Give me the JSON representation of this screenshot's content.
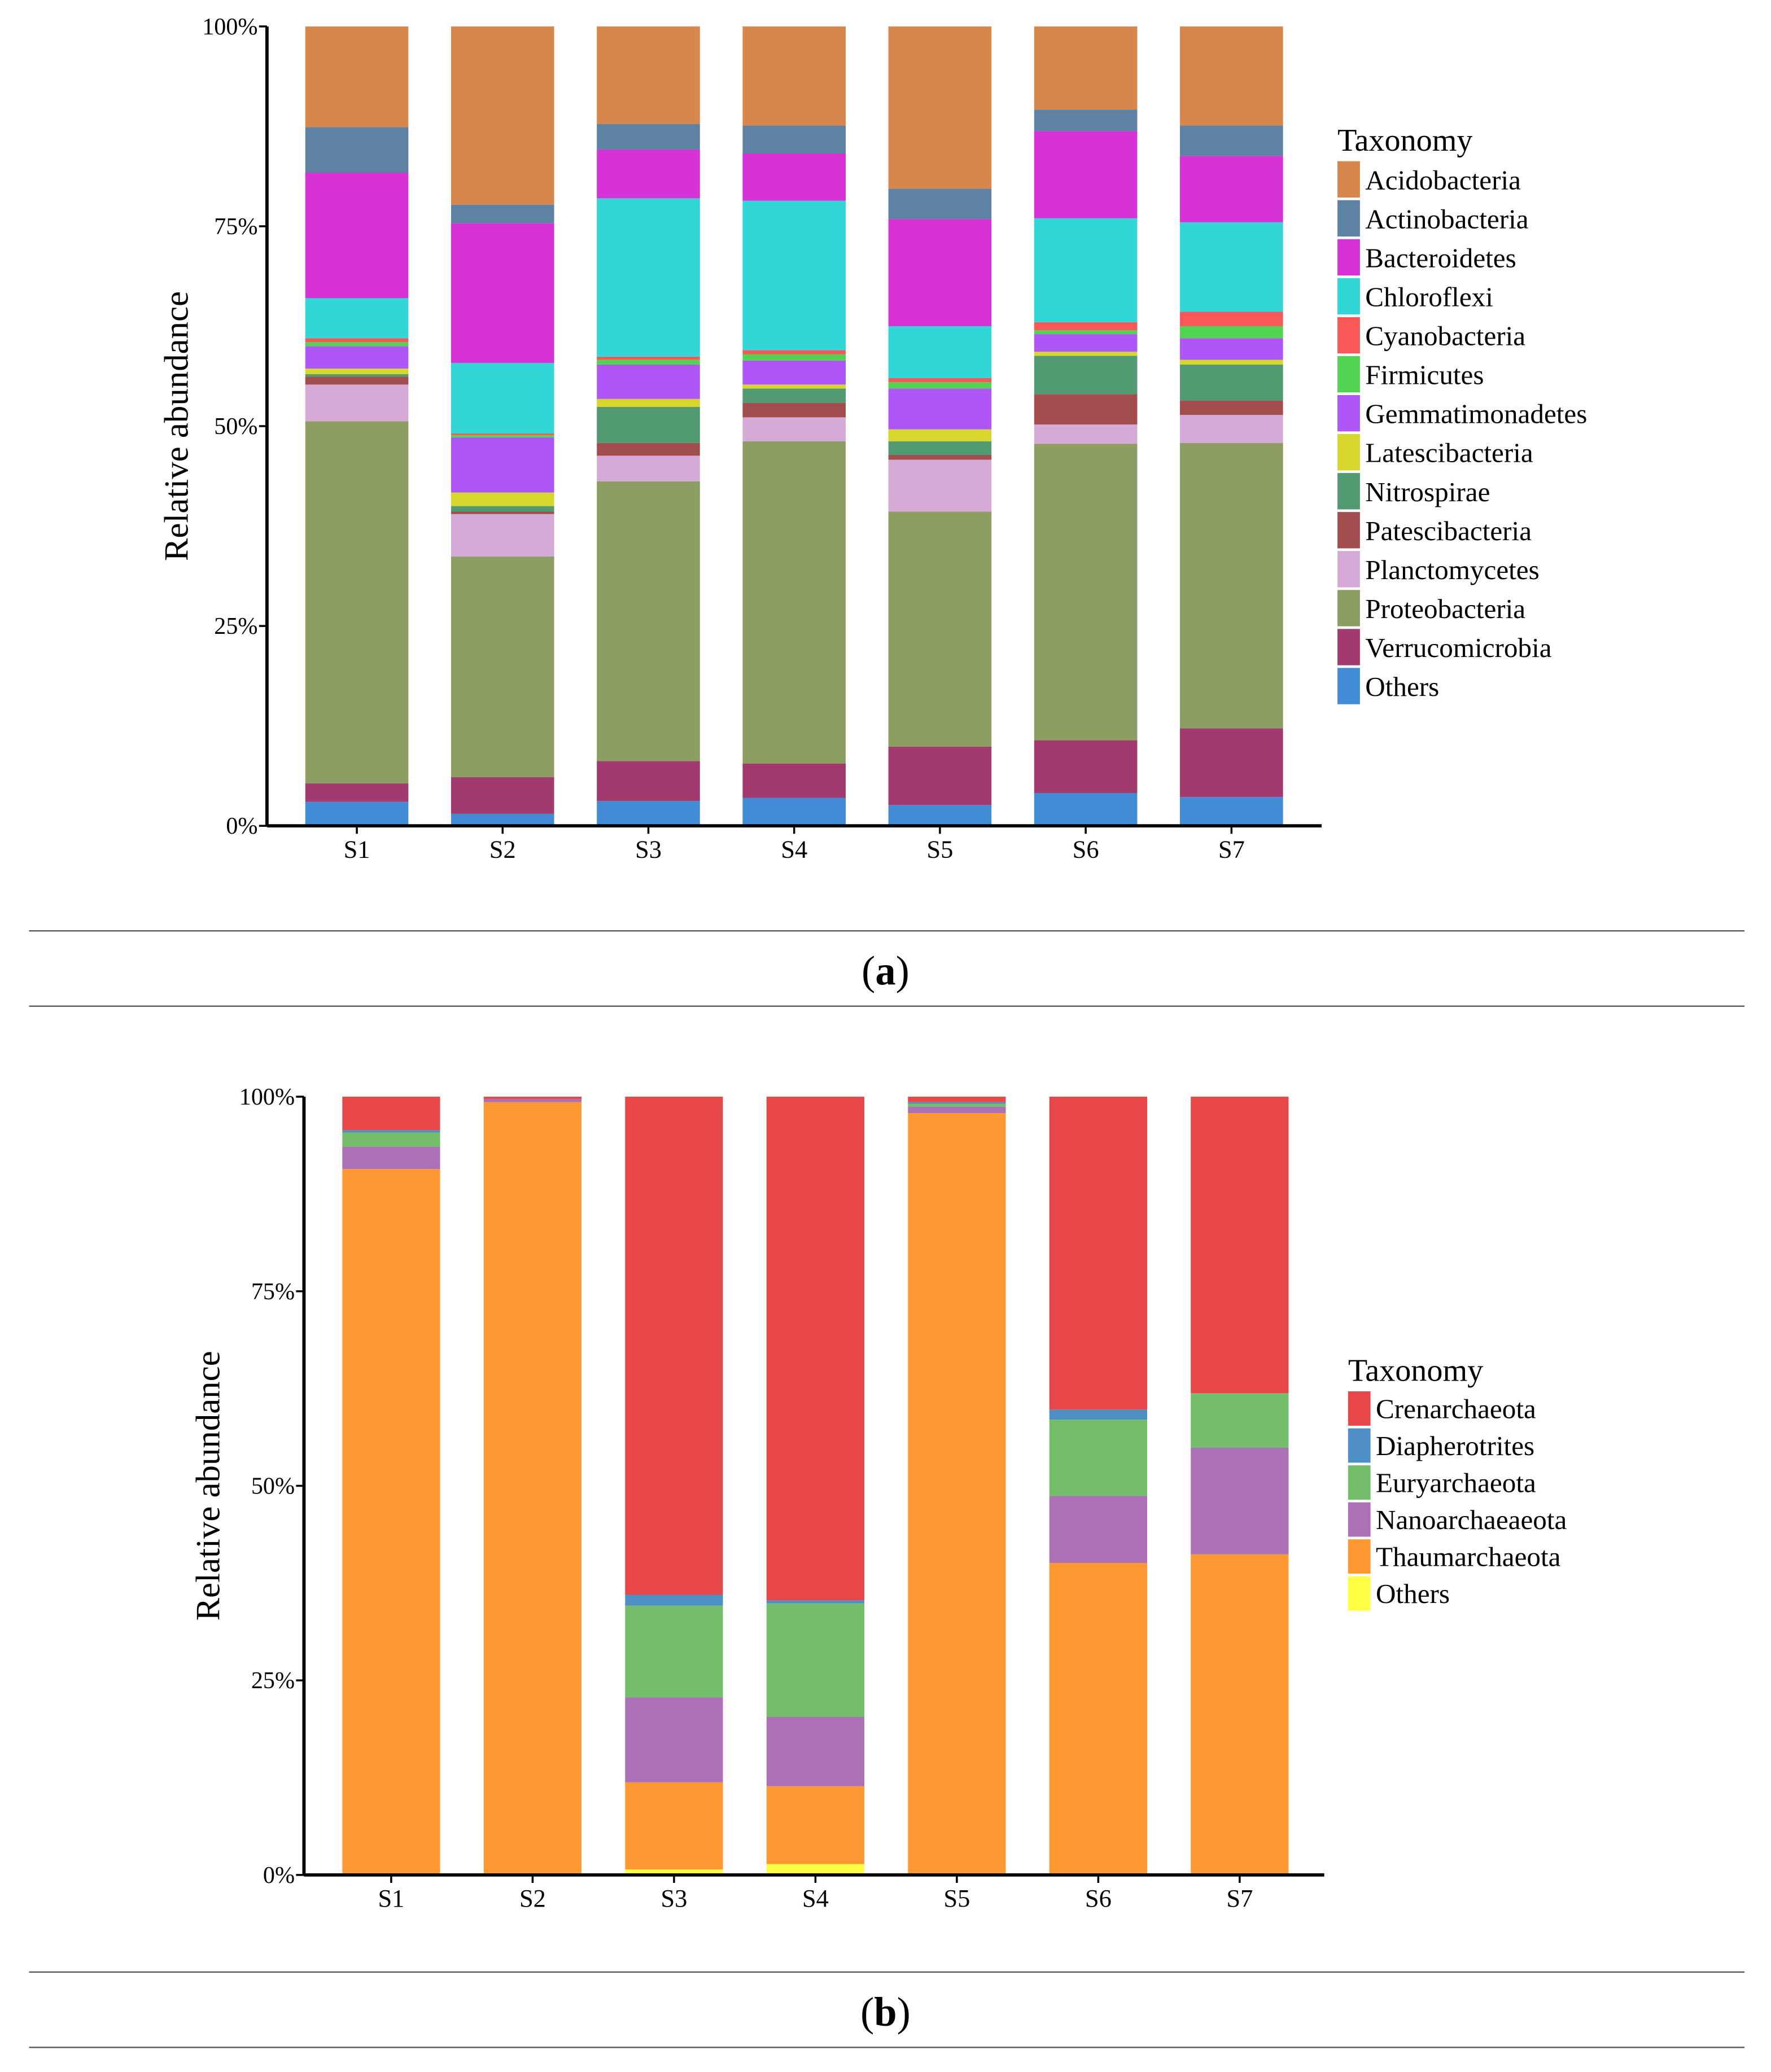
{
  "chart_data": [
    {
      "type": "bar",
      "stacked": true,
      "panel": "a",
      "caption_letter": "a",
      "ylabel": "Relative abundance",
      "xlabel": "",
      "ylim": [
        0,
        100
      ],
      "yticks": [
        "0%",
        "25%",
        "50%",
        "75%",
        "100%"
      ],
      "categories": [
        "S1",
        "S2",
        "S3",
        "S4",
        "S5",
        "S6",
        "S7"
      ],
      "legend_title": "Taxonomy",
      "legend_position": "right",
      "series": [
        {
          "name": "Acidobacteria",
          "color": "#D8874C",
          "values": [
            12.6,
            22.3,
            12.2,
            12.4,
            20.3,
            10.4,
            12.4
          ]
        },
        {
          "name": "Actinobacteria",
          "color": "#5D82A4",
          "values": [
            5.7,
            2.3,
            3.2,
            3.5,
            3.8,
            2.7,
            3.8
          ]
        },
        {
          "name": "Bacteroidetes",
          "color": "#D632D6",
          "values": [
            15.7,
            17.5,
            6.1,
            5.9,
            13.4,
            10.9,
            8.3
          ]
        },
        {
          "name": "Chloroflexi",
          "color": "#32D6D6",
          "values": [
            5.0,
            8.8,
            19.8,
            18.7,
            6.5,
            13.0,
            11.2
          ]
        },
        {
          "name": "Cyanobacteria",
          "color": "#F85858",
          "values": [
            0.5,
            0.2,
            0.4,
            0.5,
            0.5,
            1.0,
            1.8
          ]
        },
        {
          "name": "Firmicutes",
          "color": "#52D452",
          "values": [
            0.5,
            0.3,
            0.6,
            0.8,
            0.8,
            0.5,
            1.5
          ]
        },
        {
          "name": "Gemmatimonadetes",
          "color": "#AE56F8",
          "values": [
            2.8,
            6.9,
            4.3,
            3.0,
            5.1,
            2.2,
            2.7
          ]
        },
        {
          "name": "Latescibacteria",
          "color": "#D6D62C",
          "values": [
            0.7,
            1.7,
            1.0,
            0.5,
            1.5,
            0.5,
            0.6
          ]
        },
        {
          "name": "Nitrospirae",
          "color": "#529A72",
          "values": [
            0.3,
            0.7,
            4.5,
            1.8,
            1.7,
            4.8,
            4.5
          ]
        },
        {
          "name": "Patescibacteria",
          "color": "#A24E4E",
          "values": [
            1.0,
            0.3,
            1.6,
            1.8,
            0.6,
            3.8,
            1.8
          ]
        },
        {
          "name": "Planctomycetes",
          "color": "#D6AAD6",
          "values": [
            4.6,
            5.3,
            3.2,
            3.0,
            6.5,
            2.4,
            3.5
          ]
        },
        {
          "name": "Proteobacteria",
          "color": "#8C9E62",
          "values": [
            45.3,
            27.6,
            35.0,
            40.3,
            29.4,
            37.1,
            35.7
          ]
        },
        {
          "name": "Verrucomicrobia",
          "color": "#A23A70",
          "values": [
            2.3,
            4.6,
            5.0,
            4.3,
            7.3,
            6.6,
            8.6
          ]
        },
        {
          "name": "Others",
          "color": "#428CD6",
          "values": [
            3.0,
            1.5,
            3.1,
            3.5,
            2.6,
            4.1,
            3.6
          ]
        }
      ]
    },
    {
      "type": "bar",
      "stacked": true,
      "panel": "b",
      "caption_letter": "b",
      "ylabel": "Relative abundance",
      "xlabel": "",
      "ylim": [
        0,
        100
      ],
      "yticks": [
        "0%",
        "25%",
        "50%",
        "75%",
        "100%"
      ],
      "categories": [
        "S1",
        "S2",
        "S3",
        "S4",
        "S5",
        "S6",
        "S7"
      ],
      "legend_title": "Taxonomy",
      "legend_position": "right",
      "series": [
        {
          "name": "Crenarchaeota",
          "color": "#E8474A",
          "values": [
            4.3,
            0.3,
            64.0,
            64.7,
            0.7,
            40.2,
            38.1
          ]
        },
        {
          "name": "Diapherotrites",
          "color": "#4E8FC6",
          "values": [
            0.3,
            0.0,
            1.4,
            0.4,
            0.2,
            1.3,
            0.0
          ]
        },
        {
          "name": "Euryarchaeota",
          "color": "#73BD6B",
          "values": [
            1.8,
            0.0,
            11.8,
            14.6,
            0.4,
            9.8,
            7.0
          ]
        },
        {
          "name": "Nanoarchaeaeota",
          "color": "#AB70B6",
          "values": [
            2.9,
            0.4,
            10.9,
            8.9,
            0.8,
            8.6,
            13.7
          ]
        },
        {
          "name": "Thaumarchaeota",
          "color": "#FD9833",
          "values": [
            90.7,
            99.3,
            11.2,
            10.0,
            97.9,
            40.1,
            41.0
          ]
        },
        {
          "name": "Others",
          "color": "#FFFF44",
          "values": [
            0.0,
            0.0,
            0.7,
            1.4,
            0.0,
            0.0,
            0.2
          ]
        }
      ]
    }
  ]
}
